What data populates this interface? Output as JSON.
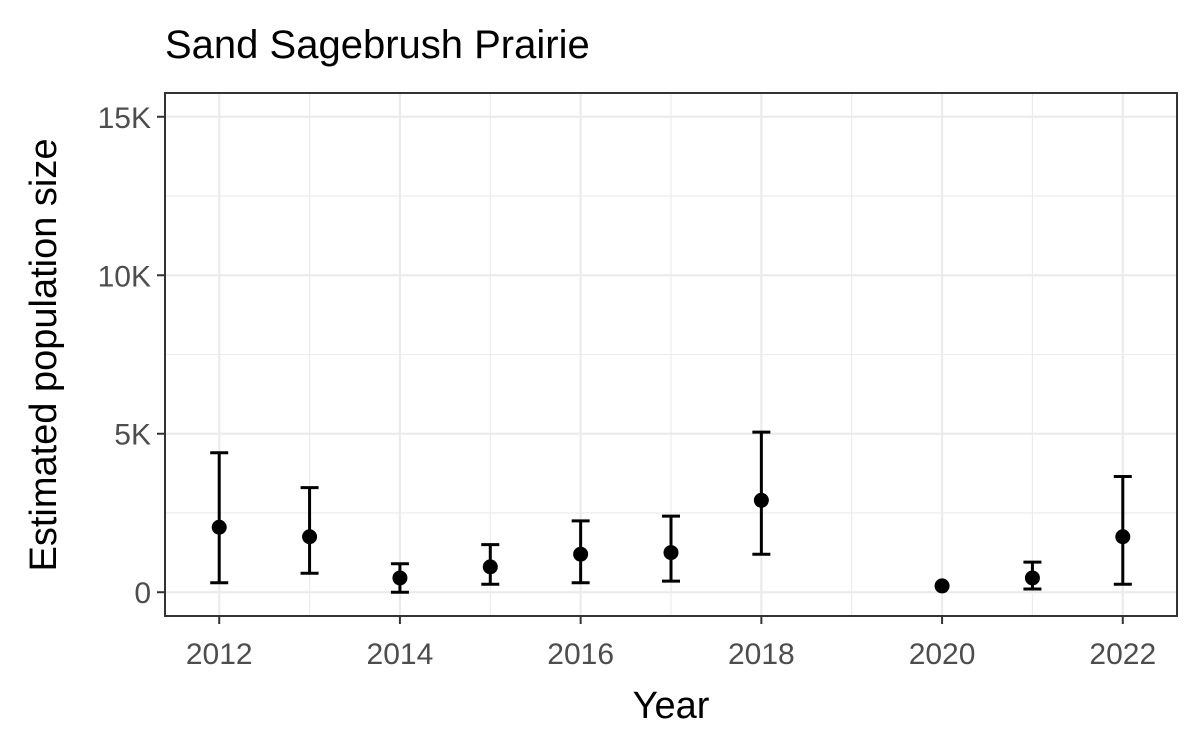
{
  "chart_data": {
    "type": "scatter",
    "title": "Sand Sagebrush Prairie",
    "xlabel": "Year",
    "ylabel": "Estimated population size",
    "xlim": [
      2011.4,
      2022.6
    ],
    "ylim": [
      -750,
      15750
    ],
    "x_ticks": [
      2012,
      2014,
      2016,
      2018,
      2020,
      2022
    ],
    "x_tick_labels": [
      "2012",
      "2014",
      "2016",
      "2018",
      "2020",
      "2022"
    ],
    "y_ticks": [
      0,
      5000,
      10000,
      15000
    ],
    "y_tick_labels": [
      "0",
      "5K",
      "10K",
      "15K"
    ],
    "grid": true,
    "error_bars": true,
    "points": [
      {
        "x": 2012,
        "y": 2050,
        "lower": 300,
        "upper": 4400
      },
      {
        "x": 2013,
        "y": 1750,
        "lower": 600,
        "upper": 3300
      },
      {
        "x": 2014,
        "y": 450,
        "lower": 0,
        "upper": 900
      },
      {
        "x": 2015,
        "y": 800,
        "lower": 250,
        "upper": 1500
      },
      {
        "x": 2016,
        "y": 1200,
        "lower": 300,
        "upper": 2250
      },
      {
        "x": 2017,
        "y": 1250,
        "lower": 350,
        "upper": 2400
      },
      {
        "x": 2018,
        "y": 2900,
        "lower": 1200,
        "upper": 5050
      },
      {
        "x": 2020,
        "y": 200,
        "lower": null,
        "upper": null
      },
      {
        "x": 2021,
        "y": 450,
        "lower": 100,
        "upper": 950
      },
      {
        "x": 2022,
        "y": 1750,
        "lower": 250,
        "upper": 3650
      }
    ]
  }
}
